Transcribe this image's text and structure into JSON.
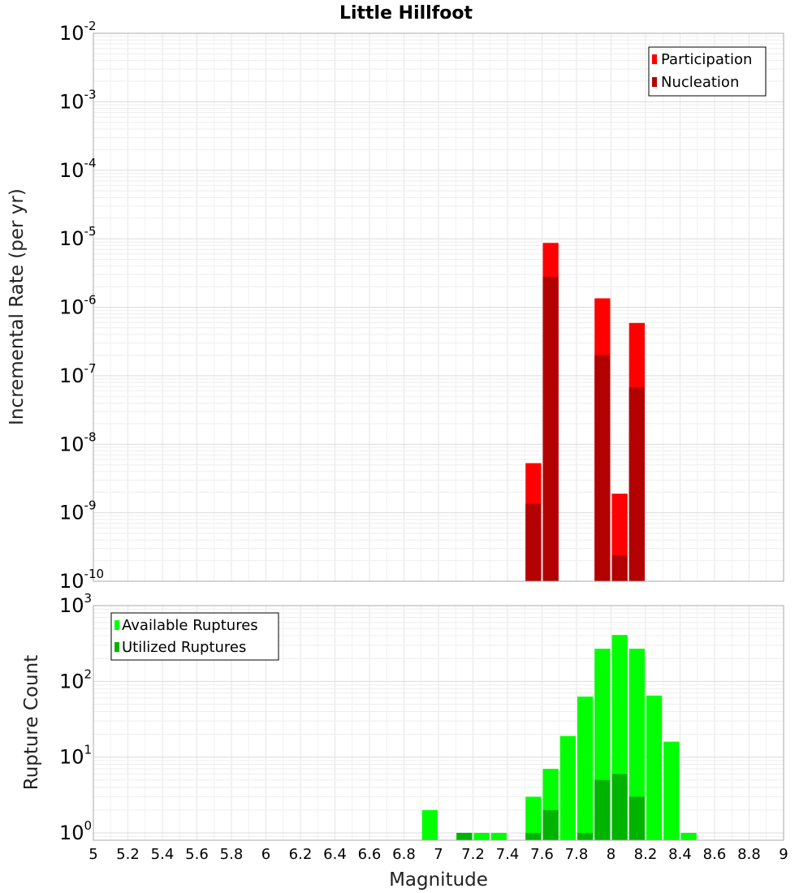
{
  "chart_data": {
    "type": "bar",
    "title": "Little Hillfoot",
    "xlabel": "Magnitude",
    "x_ticks": [
      "5",
      "5.2",
      "5.4",
      "5.6",
      "5.8",
      "6",
      "6.2",
      "6.4",
      "6.6",
      "6.8",
      "7",
      "7.2",
      "7.4",
      "7.6",
      "7.8",
      "8",
      "8.2",
      "8.4",
      "8.6",
      "8.8",
      "9"
    ],
    "xlim": [
      5,
      9
    ],
    "bin_width": 0.1,
    "panels": [
      {
        "name": "rate",
        "ylabel": "Incremental Rate (per yr)",
        "yscale": "log",
        "ylim": [
          1e-10,
          0.01
        ],
        "y_ticks": [
          {
            "base": "10",
            "exp": "-10"
          },
          {
            "base": "10",
            "exp": "-9"
          },
          {
            "base": "10",
            "exp": "-8"
          },
          {
            "base": "10",
            "exp": "-7"
          },
          {
            "base": "10",
            "exp": "-6"
          },
          {
            "base": "10",
            "exp": "-5"
          },
          {
            "base": "10",
            "exp": "-4"
          },
          {
            "base": "10",
            "exp": "-3"
          },
          {
            "base": "10",
            "exp": "-2"
          }
        ],
        "legend_position": "top-right",
        "series": [
          {
            "name": "Participation",
            "color": "#ff0000",
            "points": [
              [
                7.55,
                5.3e-09
              ],
              [
                7.65,
                8.7e-06
              ],
              [
                7.95,
                1.35e-06
              ],
              [
                8.05,
                1.9e-09
              ],
              [
                8.15,
                5.9e-07
              ]
            ]
          },
          {
            "name": "Nucleation",
            "color": "#b30000",
            "points": [
              [
                7.55,
                1.35e-09
              ],
              [
                7.65,
                2.8e-06
              ],
              [
                7.95,
                2e-07
              ],
              [
                8.05,
                2.4e-10
              ],
              [
                8.15,
                6.8e-08
              ]
            ]
          }
        ]
      },
      {
        "name": "count",
        "ylabel": "Rupture Count",
        "yscale": "log",
        "ylim": [
          0.8,
          1000
        ],
        "y_ticks": [
          {
            "base": "10",
            "exp": "0"
          },
          {
            "base": "10",
            "exp": "1"
          },
          {
            "base": "10",
            "exp": "2"
          },
          {
            "base": "10",
            "exp": "3"
          }
        ],
        "legend_position": "top-left",
        "series": [
          {
            "name": "Available Ruptures",
            "color": "#00ff00",
            "points": [
              [
                6.95,
                2
              ],
              [
                7.15,
                1
              ],
              [
                7.25,
                1
              ],
              [
                7.35,
                1
              ],
              [
                7.55,
                3
              ],
              [
                7.65,
                7
              ],
              [
                7.75,
                19
              ],
              [
                7.85,
                63
              ],
              [
                7.95,
                270
              ],
              [
                8.05,
                410
              ],
              [
                8.15,
                270
              ],
              [
                8.25,
                65
              ],
              [
                8.35,
                16
              ],
              [
                8.45,
                1
              ]
            ]
          },
          {
            "name": "Utilized Ruptures",
            "color": "#00b300",
            "points": [
              [
                7.15,
                1
              ],
              [
                7.55,
                1
              ],
              [
                7.65,
                2
              ],
              [
                7.85,
                1
              ],
              [
                7.95,
                5
              ],
              [
                8.05,
                6
              ],
              [
                8.15,
                3
              ]
            ]
          }
        ]
      }
    ]
  }
}
